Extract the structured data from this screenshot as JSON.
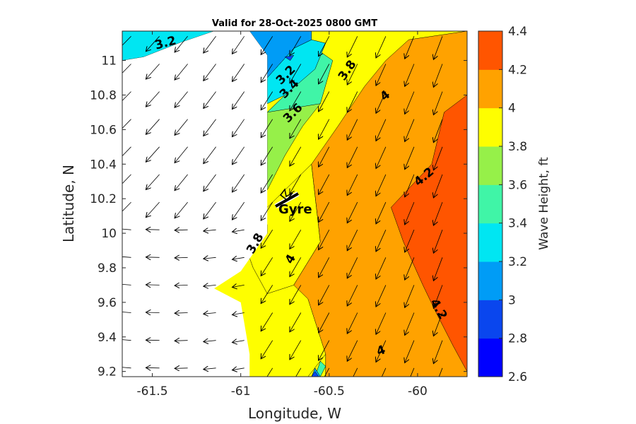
{
  "chart_data": {
    "type": "contourf-quiver",
    "title": "Valid for 28-Oct-2025 0800 GMT",
    "xlabel": "Longitude, W",
    "ylabel": "Latitude, N",
    "xlim": [
      -61.67,
      -59.72
    ],
    "ylim": [
      9.17,
      11.17
    ],
    "x_ticks": [
      -61.5,
      -61,
      -60.5,
      -60
    ],
    "x_tick_labels": [
      "-61.5",
      "-61",
      "-60.5",
      "-60"
    ],
    "y_ticks": [
      9.2,
      9.4,
      9.6,
      9.8,
      10,
      10.2,
      10.4,
      10.6,
      10.8,
      11
    ],
    "y_tick_labels": [
      "9.2",
      "9.4",
      "9.6",
      "9.8",
      "10",
      "10.2",
      "10.4",
      "10.6",
      "10.8",
      "11"
    ],
    "colorbar": {
      "label": "Wave Height, ft",
      "levels": [
        2.6,
        2.8,
        3,
        3.2,
        3.4,
        3.6,
        3.8,
        4,
        4.2,
        4.4
      ],
      "tick_labels": [
        "2.6",
        "2.8",
        "3",
        "3.2",
        "3.4",
        "3.6",
        "3.8",
        "4",
        "4.2",
        "4.4"
      ],
      "colors": [
        "#0000ff",
        "#0a46ee",
        "#009cf6",
        "#00e6f2",
        "#40f5a7",
        "#96f049",
        "#fefe00",
        "#ffa200",
        "#ff5500"
      ]
    },
    "regions": [
      {
        "name": "land-trinidad",
        "level": null,
        "points": [
          [
            -61.67,
            11.0
          ],
          [
            -61.55,
            11.02
          ],
          [
            -61.35,
            11.1
          ],
          [
            -61.15,
            11.17
          ],
          [
            -60.95,
            11.17
          ],
          [
            -60.85,
            11.03
          ],
          [
            -60.85,
            10.0
          ],
          [
            -61.0,
            9.78
          ],
          [
            -61.15,
            9.68
          ],
          [
            -61.0,
            9.6
          ],
          [
            -60.95,
            9.3
          ],
          [
            -60.95,
            9.17
          ],
          [
            -61.67,
            9.17
          ]
        ]
      },
      {
        "name": "band-3.2-nw",
        "level": 3.2,
        "points": [
          [
            -61.67,
            11.17
          ],
          [
            -61.15,
            11.17
          ],
          [
            -61.35,
            11.1
          ],
          [
            -61.55,
            11.02
          ],
          [
            -61.67,
            11.0
          ]
        ]
      },
      {
        "name": "band-3.8-west",
        "level": 3.8,
        "points": [
          [
            -61.0,
            10.0
          ],
          [
            -60.85,
            10.15
          ],
          [
            -60.6,
            10.4
          ],
          [
            -60.55,
            9.95
          ],
          [
            -60.7,
            9.7
          ],
          [
            -60.85,
            9.65
          ],
          [
            -60.93,
            9.8
          ]
        ]
      },
      {
        "name": "band-3.6-west",
        "level": 3.6,
        "points": [
          [
            -61.0,
            10.0
          ],
          [
            -60.92,
            9.92
          ],
          [
            -60.85,
            10.0
          ],
          [
            -60.85,
            10.05
          ]
        ]
      },
      {
        "name": "band-3.4-west",
        "level": 3.4,
        "points": [
          [
            -61.15,
            10.0
          ],
          [
            -61.0,
            10.0
          ],
          [
            -61.0,
            9.97
          ],
          [
            -61.12,
            9.98
          ]
        ]
      },
      {
        "name": "band-3.6-north",
        "level": 3.6,
        "points": [
          [
            -60.85,
            10.25
          ],
          [
            -60.85,
            10.7
          ],
          [
            -60.75,
            10.8
          ],
          [
            -60.58,
            10.95
          ],
          [
            -60.55,
            10.75
          ],
          [
            -60.65,
            10.62
          ],
          [
            -60.75,
            10.45
          ]
        ]
      },
      {
        "name": "band-3.4-north",
        "level": 3.4,
        "points": [
          [
            -60.85,
            10.7
          ],
          [
            -60.75,
            10.8
          ],
          [
            -60.65,
            10.92
          ],
          [
            -60.55,
            11.05
          ],
          [
            -60.48,
            11.0
          ],
          [
            -60.55,
            10.75
          ]
        ]
      },
      {
        "name": "band-3.2-north",
        "level": 3.2,
        "points": [
          [
            -60.85,
            10.9
          ],
          [
            -60.7,
            11.07
          ],
          [
            -60.6,
            11.12
          ],
          [
            -60.52,
            11.1
          ],
          [
            -60.58,
            10.95
          ],
          [
            -60.75,
            10.8
          ],
          [
            -60.85,
            10.75
          ]
        ]
      },
      {
        "name": "band-3.0-north",
        "level": 3,
        "points": [
          [
            -60.95,
            11.17
          ],
          [
            -60.6,
            11.17
          ],
          [
            -60.6,
            11.12
          ],
          [
            -60.7,
            11.07
          ],
          [
            -60.85,
            10.9
          ],
          [
            -60.85,
            11.03
          ]
        ]
      },
      {
        "name": "band-2.8-north",
        "level": 2.8,
        "points": [
          [
            -60.75,
            11.02
          ],
          [
            -60.7,
            11.03
          ],
          [
            -60.72,
            11.0
          ]
        ]
      },
      {
        "name": "band-4.0-east",
        "level": 4,
        "points": [
          [
            -60.6,
            10.4
          ],
          [
            -60.45,
            10.62
          ],
          [
            -60.3,
            10.85
          ],
          [
            -60.18,
            11.0
          ],
          [
            -60.05,
            11.12
          ],
          [
            -59.72,
            11.17
          ],
          [
            -59.72,
            9.17
          ],
          [
            -60.52,
            9.17
          ],
          [
            -60.52,
            9.3
          ],
          [
            -60.62,
            9.62
          ],
          [
            -60.7,
            9.7
          ],
          [
            -60.55,
            9.95
          ]
        ]
      },
      {
        "name": "band-4.2-east",
        "level": 4.2,
        "points": [
          [
            -59.85,
            10.7
          ],
          [
            -59.72,
            10.8
          ],
          [
            -59.72,
            9.2
          ],
          [
            -59.8,
            9.35
          ],
          [
            -59.9,
            9.55
          ],
          [
            -59.97,
            9.7
          ],
          [
            -60.08,
            9.95
          ],
          [
            -60.15,
            10.15
          ],
          [
            -59.92,
            10.4
          ]
        ]
      },
      {
        "name": "band-3.8-south",
        "level": 3.8,
        "points": [
          [
            -60.52,
            9.3
          ],
          [
            -60.52,
            9.17
          ],
          [
            -60.62,
            9.17
          ]
        ]
      },
      {
        "name": "band-3.4-south",
        "level": 3.4,
        "points": [
          [
            -60.55,
            9.17
          ],
          [
            -60.52,
            9.23
          ],
          [
            -60.55,
            9.26
          ],
          [
            -60.58,
            9.17
          ]
        ]
      },
      {
        "name": "band-3.0-south",
        "level": 3,
        "points": [
          [
            -60.6,
            9.17
          ],
          [
            -60.55,
            9.17
          ],
          [
            -60.58,
            9.22
          ]
        ]
      },
      {
        "name": "band-2.8-south",
        "level": 2.8,
        "points": [
          [
            -60.6,
            9.17
          ],
          [
            -60.56,
            9.17
          ],
          [
            -60.58,
            9.2
          ]
        ]
      }
    ],
    "contour_labels": [
      {
        "text": "3.2",
        "lon": -61.42,
        "lat": 11.08,
        "angle": -15
      },
      {
        "text": "3.2",
        "lon": -60.73,
        "lat": 10.9,
        "angle": -45
      },
      {
        "text": "3.4",
        "lon": -60.71,
        "lat": 10.82,
        "angle": -45
      },
      {
        "text": "3.6",
        "lon": -60.69,
        "lat": 10.68,
        "angle": -45
      },
      {
        "text": "3.8",
        "lon": -60.38,
        "lat": 10.93,
        "angle": -55
      },
      {
        "text": "4",
        "lon": -60.17,
        "lat": 10.78,
        "angle": -40
      },
      {
        "text": "4.2",
        "lon": -59.95,
        "lat": 10.31,
        "angle": -40
      },
      {
        "text": "4.2",
        "lon": -59.9,
        "lat": 9.55,
        "angle": 60
      },
      {
        "text": "4",
        "lon": -60.2,
        "lat": 9.3,
        "angle": -20
      },
      {
        "text": "3.8",
        "lon": -60.9,
        "lat": 9.93,
        "angle": -60
      },
      {
        "text": "4",
        "lon": -60.7,
        "lat": 9.84,
        "angle": -60
      }
    ],
    "marker": {
      "text": "Gyre",
      "lon": -60.72,
      "lat": 10.16
    }
  }
}
